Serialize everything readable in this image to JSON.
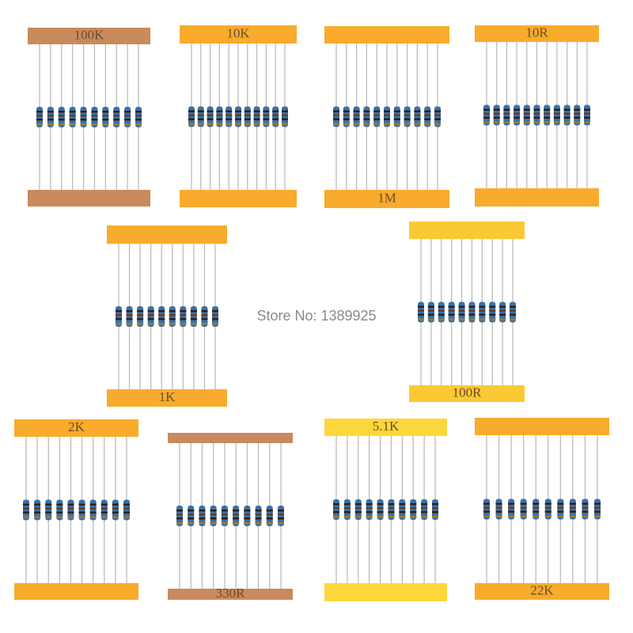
{
  "packs": [
    {
      "label": "100K"
    },
    {
      "label": "10K"
    },
    {
      "label": "1M"
    },
    {
      "label": "10R"
    },
    {
      "label": "1K"
    },
    {
      "label": "100R"
    },
    {
      "label": "2K"
    },
    {
      "label": "330R"
    },
    {
      "label": "5.1K"
    },
    {
      "label": "22K"
    }
  ],
  "watermark": "Store No: 1389925"
}
